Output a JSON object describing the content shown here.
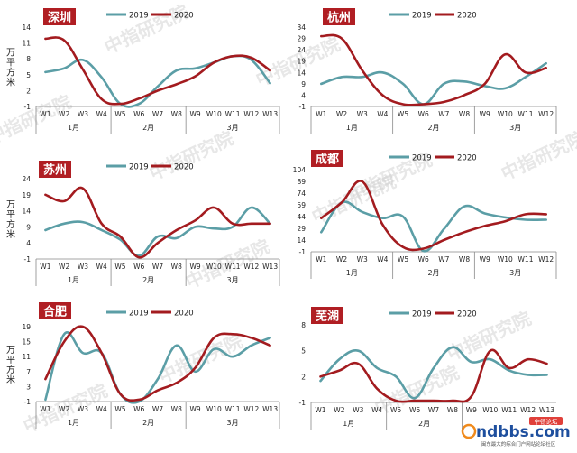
{
  "colors": {
    "series_2019": "#5b9ea6",
    "series_2020": "#a31b1f",
    "title_bg": "#b01e23",
    "title_text": "#ffffff",
    "axis": "#888888",
    "label": "#222222",
    "watermark": "#c9c9c9"
  },
  "legend": [
    "2019",
    "2020"
  ],
  "watermark_text": "中指研究院",
  "logo": {
    "text": "ndbbs.com",
    "badge": "宁德论坛",
    "subtitle": "闽东最大的综合门户网站论坛社区"
  },
  "chart_data": [
    {
      "type": "line",
      "title": "深圳",
      "ylabel": "万平方米",
      "yticks": [
        -1,
        2,
        5,
        8,
        11,
        14
      ],
      "ylim": [
        -1,
        14
      ],
      "categories": [
        "W1",
        "W2",
        "W3",
        "W4",
        "W5",
        "W6",
        "W7",
        "W8",
        "W9",
        "W10",
        "W11",
        "W12",
        "W13"
      ],
      "month_groups": [
        {
          "label": "1月",
          "from": 0,
          "to": 3
        },
        {
          "label": "2月",
          "from": 4,
          "to": 7
        },
        {
          "label": "3月",
          "from": 8,
          "to": 12
        }
      ],
      "series": [
        {
          "name": "2019",
          "values": [
            5.5,
            6.2,
            7.8,
            4.5,
            -0.5,
            -0.5,
            2.8,
            5.8,
            6.2,
            7.3,
            8.5,
            7.8,
            3.4
          ]
        },
        {
          "name": "2020",
          "values": [
            11.8,
            11.5,
            6.0,
            0.4,
            -0.5,
            0.5,
            2.0,
            3.2,
            4.7,
            7.3,
            8.5,
            8.2,
            5.8
          ]
        }
      ]
    },
    {
      "type": "line",
      "title": "杭州",
      "ylabel": "",
      "yticks": [
        -1,
        4,
        9,
        14,
        19,
        24,
        29,
        34
      ],
      "ylim": [
        -1,
        34
      ],
      "categories": [
        "W1",
        "W2",
        "W3",
        "W4",
        "W5",
        "W6",
        "W7",
        "W8",
        "W9",
        "W10",
        "W11",
        "W12"
      ],
      "month_groups": [
        {
          "label": "1月",
          "from": 0,
          "to": 3
        },
        {
          "label": "2月",
          "from": 4,
          "to": 7
        },
        {
          "label": "3月",
          "from": 8,
          "to": 11
        }
      ],
      "series": [
        {
          "name": "2019",
          "values": [
            9,
            12,
            12,
            14,
            9,
            0,
            9,
            10,
            8,
            7,
            12,
            18
          ]
        },
        {
          "name": "2020",
          "values": [
            30,
            29,
            15,
            4,
            0,
            0,
            1,
            4,
            9,
            22,
            14,
            16
          ]
        }
      ]
    },
    {
      "type": "line",
      "title": "苏州",
      "ylabel": "万平方米",
      "yticks": [
        -1,
        4,
        9,
        14,
        19,
        24
      ],
      "ylim": [
        -1,
        24
      ],
      "categories": [
        "W1",
        "W2",
        "W3",
        "W4",
        "W5",
        "W6",
        "W7",
        "W8",
        "W9",
        "W10",
        "W11",
        "W12",
        "W13"
      ],
      "month_groups": [
        {
          "label": "1月",
          "from": 0,
          "to": 3
        },
        {
          "label": "2月",
          "from": 4,
          "to": 7
        },
        {
          "label": "3月",
          "from": 8,
          "to": 12
        }
      ],
      "series": [
        {
          "name": "2019",
          "values": [
            8,
            10,
            10.5,
            8,
            5,
            0,
            6,
            5.5,
            9,
            8.5,
            9,
            15,
            10
          ]
        },
        {
          "name": "2020",
          "values": [
            19,
            17,
            21,
            10,
            6,
            -0.5,
            4,
            8,
            11,
            15,
            10,
            10,
            10
          ]
        }
      ]
    },
    {
      "type": "line",
      "title": "成都",
      "ylabel": "",
      "yticks": [
        -1,
        14,
        29,
        44,
        59,
        74,
        89,
        104
      ],
      "ylim": [
        -1,
        104
      ],
      "categories": [
        "W1",
        "W2",
        "W3",
        "W4",
        "W5",
        "W6",
        "W7",
        "W8",
        "W9",
        "W10",
        "W11",
        "W12"
      ],
      "month_groups": [
        {
          "label": "1月",
          "from": 0,
          "to": 3
        },
        {
          "label": "2月",
          "from": 4,
          "to": 7
        },
        {
          "label": "3月",
          "from": 8,
          "to": 11
        }
      ],
      "series": [
        {
          "name": "2019",
          "values": [
            24,
            62,
            50,
            42,
            44,
            0,
            28,
            57,
            48,
            43,
            40,
            40
          ]
        },
        {
          "name": "2020",
          "values": [
            42,
            62,
            89,
            34,
            5,
            3,
            14,
            24,
            32,
            38,
            47,
            47
          ]
        }
      ]
    },
    {
      "type": "line",
      "title": "合肥",
      "ylabel": "万平方米",
      "yticks": [
        -1,
        3,
        7,
        11,
        15,
        19
      ],
      "ylim": [
        -1,
        19
      ],
      "categories": [
        "W1",
        "W2",
        "W3",
        "W4",
        "W5",
        "W6",
        "W7",
        "W8",
        "W9",
        "W10",
        "W11",
        "W12",
        "W13"
      ],
      "month_groups": [
        {
          "label": "1月",
          "from": 0,
          "to": 3
        },
        {
          "label": "2月",
          "from": 4,
          "to": 7
        },
        {
          "label": "3月",
          "from": 8,
          "to": 12
        }
      ],
      "series": [
        {
          "name": "2019",
          "values": [
            -0.5,
            17,
            12,
            12,
            1,
            -1,
            5,
            14,
            7,
            13,
            11,
            14,
            16
          ]
        },
        {
          "name": "2020",
          "values": [
            5,
            15,
            19,
            12,
            1,
            -0.5,
            2,
            4,
            8,
            16,
            17,
            16,
            14
          ]
        }
      ]
    },
    {
      "type": "line",
      "title": "芜湖",
      "ylabel": "",
      "yticks": [
        -1,
        2,
        5,
        8
      ],
      "ylim": [
        -1,
        8
      ],
      "categories": [
        "W1",
        "W2",
        "W3",
        "W4",
        "W5",
        "W6",
        "W7",
        "W8",
        "W9",
        "W10",
        "W11",
        "W12",
        "W13"
      ],
      "month_groups": [
        {
          "label": "1月",
          "from": 0,
          "to": 3
        },
        {
          "label": "2月",
          "from": 4,
          "to": 7
        }
      ],
      "series": [
        {
          "name": "2019",
          "values": [
            1.5,
            4,
            5,
            3,
            2,
            -0.5,
            3,
            5.4,
            3.7,
            4,
            2.7,
            2.2,
            2.2
          ]
        },
        {
          "name": "2020",
          "values": [
            2,
            2.7,
            3.5,
            0.6,
            -0.8,
            -0.8,
            -0.8,
            -0.8,
            -0.3,
            5,
            3,
            4,
            3.5
          ]
        }
      ]
    }
  ]
}
